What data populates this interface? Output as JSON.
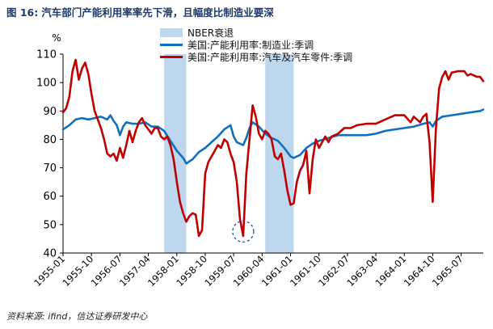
{
  "figure": {
    "label": "图 16:",
    "title": "汽车部门产能利用率率先下滑，且幅度比制造业要深",
    "source": "资料来源: ifind，信达证券研发中心"
  },
  "chart_data": {
    "type": "line",
    "title": "汽车部门产能利用率率先下滑，且幅度比制造业要深",
    "ylabel": "%",
    "xlabel": "",
    "ylim": [
      40,
      110
    ],
    "yticks": [
      40,
      50,
      60,
      70,
      80,
      90,
      100,
      110
    ],
    "xlim": [
      "1955-01",
      "1966-02"
    ],
    "xtick_labels": [
      "1955-01",
      "1955-10",
      "1956-07",
      "1957-04",
      "1958-01",
      "1958-10",
      "1959-07",
      "1960-04",
      "1961-01",
      "1961-10",
      "1962-07",
      "1963-04",
      "1964-01",
      "1964-10",
      "1965-07"
    ],
    "legend_position": "top-center",
    "grid": false,
    "recession_shading": {
      "name": "NBER衰退",
      "color": "#bdd7ee",
      "periods": [
        [
          "1957-09",
          "1958-04"
        ],
        [
          "1960-05",
          "1961-02"
        ]
      ]
    },
    "annotation": {
      "type": "dashed-circle",
      "x": "1959-10",
      "y": 47,
      "color": "#1f4e9c"
    },
    "series": [
      {
        "name": "美国:产能利用率:制造业:季调",
        "color": "#1070c0",
        "points": [
          [
            "1955-01",
            83.5
          ],
          [
            "1955-03",
            85
          ],
          [
            "1955-05",
            87
          ],
          [
            "1955-07",
            87.5
          ],
          [
            "1955-09",
            87
          ],
          [
            "1955-11",
            87.5
          ],
          [
            "1956-01",
            88
          ],
          [
            "1956-03",
            87
          ],
          [
            "1956-04",
            88.5
          ],
          [
            "1956-05",
            86.5
          ],
          [
            "1956-06",
            85
          ],
          [
            "1956-07",
            81.5
          ],
          [
            "1956-08",
            84.5
          ],
          [
            "1956-09",
            86
          ],
          [
            "1956-11",
            85.5
          ],
          [
            "1957-01",
            85.5
          ],
          [
            "1957-03",
            86
          ],
          [
            "1957-05",
            84.5
          ],
          [
            "1957-07",
            84.5
          ],
          [
            "1957-09",
            83
          ],
          [
            "1957-11",
            79.5
          ],
          [
            "1958-01",
            76
          ],
          [
            "1958-03",
            73.5
          ],
          [
            "1958-04",
            71.5
          ],
          [
            "1958-06",
            73
          ],
          [
            "1958-08",
            75.5
          ],
          [
            "1958-10",
            77
          ],
          [
            "1958-12",
            79
          ],
          [
            "1959-02",
            81
          ],
          [
            "1959-04",
            83.5
          ],
          [
            "1959-06",
            85
          ],
          [
            "1959-07",
            81
          ],
          [
            "1959-08",
            79
          ],
          [
            "1959-10",
            78
          ],
          [
            "1959-11",
            80.5
          ],
          [
            "1959-12",
            84
          ],
          [
            "1960-01",
            86
          ],
          [
            "1960-03",
            84.5
          ],
          [
            "1960-05",
            82
          ],
          [
            "1960-07",
            80.5
          ],
          [
            "1960-09",
            79.5
          ],
          [
            "1960-11",
            77
          ],
          [
            "1961-01",
            74
          ],
          [
            "1961-02",
            73.5
          ],
          [
            "1961-04",
            74.5
          ],
          [
            "1961-06",
            77
          ],
          [
            "1961-08",
            78.5
          ],
          [
            "1961-10",
            79.5
          ],
          [
            "1962-01",
            80.5
          ],
          [
            "1962-04",
            81.5
          ],
          [
            "1962-07",
            81.5
          ],
          [
            "1962-10",
            81.5
          ],
          [
            "1963-01",
            81.5
          ],
          [
            "1963-04",
            82
          ],
          [
            "1963-07",
            83
          ],
          [
            "1963-10",
            83.5
          ],
          [
            "1964-01",
            84
          ],
          [
            "1964-04",
            84.5
          ],
          [
            "1964-07",
            85.5
          ],
          [
            "1964-09",
            86
          ],
          [
            "1964-10",
            84.5
          ],
          [
            "1964-11",
            86.5
          ],
          [
            "1965-01",
            88
          ],
          [
            "1965-04",
            88.5
          ],
          [
            "1965-07",
            89
          ],
          [
            "1965-10",
            89.5
          ],
          [
            "1966-01",
            90
          ],
          [
            "1966-02",
            90.5
          ]
        ]
      },
      {
        "name": "美国:产能利用率:汽车及汽车零件:季调",
        "color": "#c00000",
        "points": [
          [
            "1955-01",
            89.5
          ],
          [
            "1955-02",
            91
          ],
          [
            "1955-03",
            95
          ],
          [
            "1955-04",
            104
          ],
          [
            "1955-05",
            108
          ],
          [
            "1955-06",
            101
          ],
          [
            "1955-07",
            105
          ],
          [
            "1955-08",
            107
          ],
          [
            "1955-09",
            103
          ],
          [
            "1955-10",
            96
          ],
          [
            "1955-11",
            90
          ],
          [
            "1955-12",
            87
          ],
          [
            "1956-01",
            84
          ],
          [
            "1956-02",
            80
          ],
          [
            "1956-03",
            75
          ],
          [
            "1956-04",
            74
          ],
          [
            "1956-05",
            75
          ],
          [
            "1956-06",
            72.5
          ],
          [
            "1956-07",
            77
          ],
          [
            "1956-08",
            73.5
          ],
          [
            "1956-09",
            78
          ],
          [
            "1956-10",
            83
          ],
          [
            "1956-11",
            79
          ],
          [
            "1956-12",
            83
          ],
          [
            "1957-01",
            86
          ],
          [
            "1957-02",
            87.5
          ],
          [
            "1957-03",
            85
          ],
          [
            "1957-04",
            83.5
          ],
          [
            "1957-05",
            82
          ],
          [
            "1957-06",
            84
          ],
          [
            "1957-07",
            84
          ],
          [
            "1957-08",
            81
          ],
          [
            "1957-09",
            80
          ],
          [
            "1957-10",
            81
          ],
          [
            "1957-11",
            78
          ],
          [
            "1957-12",
            73
          ],
          [
            "1958-01",
            65
          ],
          [
            "1958-02",
            58
          ],
          [
            "1958-03",
            54
          ],
          [
            "1958-04",
            51
          ],
          [
            "1958-05",
            53
          ],
          [
            "1958-06",
            54
          ],
          [
            "1958-07",
            53.5
          ],
          [
            "1958-08",
            46
          ],
          [
            "1958-09",
            48
          ],
          [
            "1958-10",
            68
          ],
          [
            "1958-11",
            72
          ],
          [
            "1958-12",
            74
          ],
          [
            "1959-01",
            76
          ],
          [
            "1959-02",
            78
          ],
          [
            "1959-03",
            77
          ],
          [
            "1959-04",
            80
          ],
          [
            "1959-05",
            79
          ],
          [
            "1959-06",
            75
          ],
          [
            "1959-07",
            72
          ],
          [
            "1959-08",
            65
          ],
          [
            "1959-09",
            52
          ],
          [
            "1959-10",
            46
          ],
          [
            "1959-11",
            68
          ],
          [
            "1959-12",
            80
          ],
          [
            "1960-01",
            92
          ],
          [
            "1960-02",
            88
          ],
          [
            "1960-03",
            82
          ],
          [
            "1960-04",
            80
          ],
          [
            "1960-05",
            83
          ],
          [
            "1960-06",
            82
          ],
          [
            "1960-07",
            80
          ],
          [
            "1960-08",
            74
          ],
          [
            "1960-09",
            73
          ],
          [
            "1960-10",
            75
          ],
          [
            "1960-11",
            69
          ],
          [
            "1960-12",
            62
          ],
          [
            "1961-01",
            57
          ],
          [
            "1961-02",
            57.5
          ],
          [
            "1961-03",
            65
          ],
          [
            "1961-04",
            69
          ],
          [
            "1961-05",
            71
          ],
          [
            "1961-06",
            76
          ],
          [
            "1961-07",
            61
          ],
          [
            "1961-08",
            73
          ],
          [
            "1961-09",
            80
          ],
          [
            "1961-10",
            77
          ],
          [
            "1961-11",
            79
          ],
          [
            "1961-12",
            81
          ],
          [
            "1962-01",
            79
          ],
          [
            "1962-02",
            81
          ],
          [
            "1962-04",
            82
          ],
          [
            "1962-06",
            84
          ],
          [
            "1962-08",
            84
          ],
          [
            "1962-10",
            85
          ],
          [
            "1963-01",
            85.5
          ],
          [
            "1963-04",
            85.5
          ],
          [
            "1963-07",
            87
          ],
          [
            "1963-10",
            88.5
          ],
          [
            "1964-01",
            88.5
          ],
          [
            "1964-03",
            86
          ],
          [
            "1964-04",
            88
          ],
          [
            "1964-06",
            86
          ],
          [
            "1964-07",
            88
          ],
          [
            "1964-08",
            89
          ],
          [
            "1964-09",
            79
          ],
          [
            "1964-10",
            58
          ],
          [
            "1964-11",
            84
          ],
          [
            "1964-12",
            98
          ],
          [
            "1965-01",
            102
          ],
          [
            "1965-02",
            104
          ],
          [
            "1965-03",
            101
          ],
          [
            "1965-04",
            103.5
          ],
          [
            "1965-06",
            104
          ],
          [
            "1965-08",
            104
          ],
          [
            "1965-09",
            102.5
          ],
          [
            "1965-10",
            103
          ],
          [
            "1965-12",
            102
          ],
          [
            "1966-01",
            102
          ],
          [
            "1966-02",
            100.5
          ]
        ]
      }
    ]
  }
}
